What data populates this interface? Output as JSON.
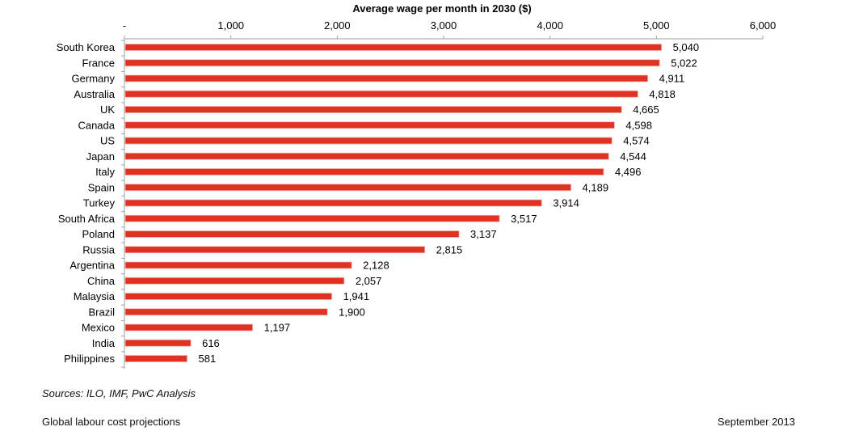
{
  "chart_data": {
    "type": "bar",
    "orientation": "horizontal",
    "title": "Average wage per month in 2030 ($)",
    "xlabel": "Average wage per month in 2030 ($)",
    "ylabel": "",
    "xlim": [
      0,
      6000
    ],
    "x_ticks": [
      0,
      1000,
      2000,
      3000,
      4000,
      5000,
      6000
    ],
    "x_tick_labels": [
      "-",
      "1,000",
      "2,000",
      "3,000",
      "4,000",
      "5,000",
      "6,000"
    ],
    "x_axis_position": "top",
    "grid": false,
    "legend": "none",
    "bar_color": "#E03222",
    "categories": [
      "South Korea",
      "France",
      "Germany",
      "Australia",
      "UK",
      "Canada",
      "US",
      "Japan",
      "Italy",
      "Spain",
      "Turkey",
      "South Africa",
      "Poland",
      "Russia",
      "Argentina",
      "China",
      "Malaysia",
      "Brazil",
      "Mexico",
      "India",
      "Philippines"
    ],
    "values": [
      5040,
      5022,
      4911,
      4818,
      4665,
      4598,
      4574,
      4544,
      4496,
      4189,
      3914,
      3517,
      3137,
      2815,
      2128,
      2057,
      1941,
      1900,
      1197,
      616,
      581
    ],
    "value_labels": [
      "5,040",
      "5,022",
      "4,911",
      "4,818",
      "4,665",
      "4,598",
      "4,574",
      "4,544",
      "4,496",
      "4,189",
      "3,914",
      "3,517",
      "3,137",
      "2,815",
      "2,128",
      "2,057",
      "1,941",
      "1,900",
      "1,197",
      "616",
      "581"
    ]
  },
  "source": "Sources: ILO, IMF, PwC Analysis",
  "footer": {
    "left": "Global labour cost projections",
    "right": "September 2013"
  }
}
